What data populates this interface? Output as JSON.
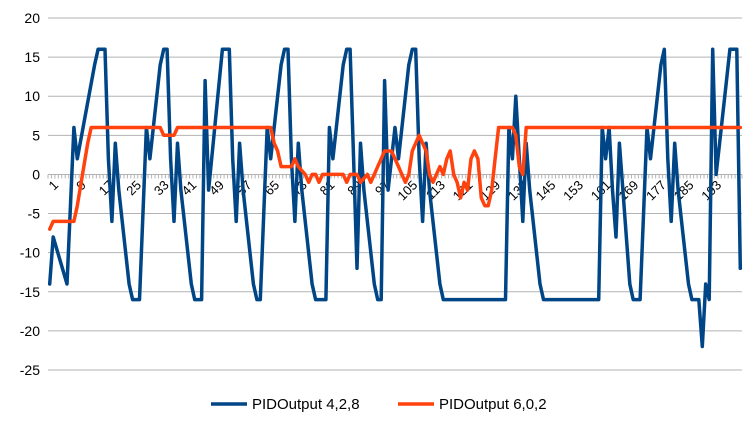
{
  "chart_data": {
    "type": "line",
    "title": "",
    "xlabel": "",
    "ylabel": "",
    "ylim": [
      -25,
      20
    ],
    "yticks": [
      20,
      15,
      10,
      5,
      0,
      -5,
      -10,
      -15,
      -20,
      -25
    ],
    "x_tick_labels": [
      1,
      9,
      17,
      25,
      33,
      41,
      49,
      57,
      65,
      73,
      81,
      89,
      97,
      105,
      113,
      121,
      129,
      137,
      145,
      153,
      161,
      169,
      177,
      185,
      193
    ],
    "x_count": 201,
    "legend_position": "bottom",
    "grid": "horizontal",
    "series": [
      {
        "name": "PIDOutput 4,2,8",
        "color": "#004586",
        "keypoints": [
          [
            1,
            -14
          ],
          [
            2,
            -8
          ],
          [
            6,
            -14
          ],
          [
            8,
            6
          ],
          [
            9,
            2
          ],
          [
            14,
            14
          ],
          [
            15,
            16
          ],
          [
            17,
            16
          ],
          [
            18,
            2
          ],
          [
            19,
            -6
          ],
          [
            20,
            4
          ],
          [
            21,
            -2
          ],
          [
            24,
            -14
          ],
          [
            25,
            -16
          ],
          [
            27,
            -16
          ],
          [
            29,
            6
          ],
          [
            30,
            2
          ],
          [
            33,
            14
          ],
          [
            34,
            16
          ],
          [
            35,
            16
          ],
          [
            36,
            2
          ],
          [
            37,
            -6
          ],
          [
            38,
            4
          ],
          [
            39,
            -2
          ],
          [
            42,
            -14
          ],
          [
            43,
            -16
          ],
          [
            45,
            -16
          ],
          [
            46,
            12
          ],
          [
            47,
            -2
          ],
          [
            51,
            16
          ],
          [
            53,
            16
          ],
          [
            54,
            2
          ],
          [
            55,
            -6
          ],
          [
            56,
            4
          ],
          [
            57,
            -2
          ],
          [
            60,
            -14
          ],
          [
            61,
            -16
          ],
          [
            62,
            -16
          ],
          [
            64,
            6
          ],
          [
            65,
            2
          ],
          [
            68,
            14
          ],
          [
            69,
            16
          ],
          [
            70,
            16
          ],
          [
            71,
            2
          ],
          [
            72,
            -6
          ],
          [
            73,
            4
          ],
          [
            74,
            -2
          ],
          [
            77,
            -14
          ],
          [
            78,
            -16
          ],
          [
            81,
            -16
          ],
          [
            82,
            6
          ],
          [
            83,
            2
          ],
          [
            86,
            14
          ],
          [
            87,
            16
          ],
          [
            88,
            16
          ],
          [
            89,
            2
          ],
          [
            90,
            -12
          ],
          [
            91,
            4
          ],
          [
            92,
            -2
          ],
          [
            95,
            -14
          ],
          [
            96,
            -16
          ],
          [
            97,
            -16
          ],
          [
            98,
            12
          ],
          [
            99,
            -2
          ],
          [
            101,
            6
          ],
          [
            102,
            2
          ],
          [
            105,
            14
          ],
          [
            106,
            16
          ],
          [
            107,
            16
          ],
          [
            108,
            2
          ],
          [
            109,
            -6
          ],
          [
            110,
            4
          ],
          [
            111,
            -2
          ],
          [
            114,
            -14
          ],
          [
            115,
            -16
          ],
          [
            133,
            -16
          ],
          [
            134,
            6
          ],
          [
            135,
            2
          ],
          [
            136,
            10
          ],
          [
            137,
            2
          ],
          [
            138,
            -6
          ],
          [
            139,
            4
          ],
          [
            140,
            -2
          ],
          [
            143,
            -14
          ],
          [
            144,
            -16
          ],
          [
            160,
            -16
          ],
          [
            161,
            6
          ],
          [
            162,
            2
          ],
          [
            163,
            6
          ],
          [
            164,
            -2
          ],
          [
            165,
            -8
          ],
          [
            166,
            4
          ],
          [
            167,
            -2
          ],
          [
            169,
            -14
          ],
          [
            170,
            -16
          ],
          [
            172,
            -16
          ],
          [
            174,
            6
          ],
          [
            175,
            2
          ],
          [
            178,
            14
          ],
          [
            179,
            16
          ],
          [
            180,
            2
          ],
          [
            181,
            -6
          ],
          [
            182,
            4
          ],
          [
            183,
            -2
          ],
          [
            186,
            -14
          ],
          [
            187,
            -16
          ],
          [
            189,
            -16
          ],
          [
            190,
            -22
          ],
          [
            191,
            -14
          ],
          [
            192,
            -16
          ],
          [
            193,
            16
          ],
          [
            194,
            0
          ],
          [
            195,
            4
          ],
          [
            197,
            12
          ],
          [
            198,
            16
          ],
          [
            200,
            16
          ],
          [
            201,
            -12
          ]
        ]
      },
      {
        "name": "PIDOutput 6,0,2",
        "color": "#ff420e",
        "keypoints": [
          [
            1,
            -7
          ],
          [
            2,
            -6
          ],
          [
            8,
            -6
          ],
          [
            9,
            -4
          ],
          [
            12,
            4
          ],
          [
            13,
            6
          ],
          [
            33,
            6
          ],
          [
            34,
            5
          ],
          [
            37,
            5
          ],
          [
            38,
            6
          ],
          [
            65,
            6
          ],
          [
            66,
            4
          ],
          [
            67,
            3
          ],
          [
            68,
            1
          ],
          [
            71,
            1
          ],
          [
            72,
            2
          ],
          [
            73,
            1
          ],
          [
            75,
            0
          ],
          [
            76,
            -1
          ],
          [
            77,
            0
          ],
          [
            78,
            0
          ],
          [
            79,
            -1
          ],
          [
            80,
            0
          ],
          [
            86,
            0
          ],
          [
            87,
            -1
          ],
          [
            88,
            0
          ],
          [
            90,
            0
          ],
          [
            91,
            -1
          ],
          [
            93,
            0
          ],
          [
            94,
            -1
          ],
          [
            95,
            0
          ],
          [
            96,
            1
          ],
          [
            97,
            2
          ],
          [
            98,
            3
          ],
          [
            100,
            3
          ],
          [
            101,
            2
          ],
          [
            102,
            1
          ],
          [
            103,
            0
          ],
          [
            104,
            -1
          ],
          [
            105,
            0
          ],
          [
            106,
            3
          ],
          [
            107,
            4
          ],
          [
            108,
            5
          ],
          [
            109,
            4
          ],
          [
            110,
            3
          ],
          [
            111,
            0
          ],
          [
            112,
            -1
          ],
          [
            113,
            0
          ],
          [
            114,
            1
          ],
          [
            115,
            0
          ],
          [
            116,
            2
          ],
          [
            117,
            3
          ],
          [
            118,
            0
          ],
          [
            119,
            -1
          ],
          [
            120,
            -3
          ],
          [
            121,
            -1
          ],
          [
            122,
            -2
          ],
          [
            123,
            2
          ],
          [
            124,
            3
          ],
          [
            125,
            2
          ],
          [
            126,
            -3
          ],
          [
            127,
            -4
          ],
          [
            128,
            -4
          ],
          [
            129,
            -2
          ],
          [
            130,
            2
          ],
          [
            131,
            6
          ],
          [
            135,
            6
          ],
          [
            136,
            5
          ],
          [
            137,
            1
          ],
          [
            138,
            0
          ],
          [
            139,
            6
          ],
          [
            201,
            6
          ]
        ]
      }
    ]
  }
}
